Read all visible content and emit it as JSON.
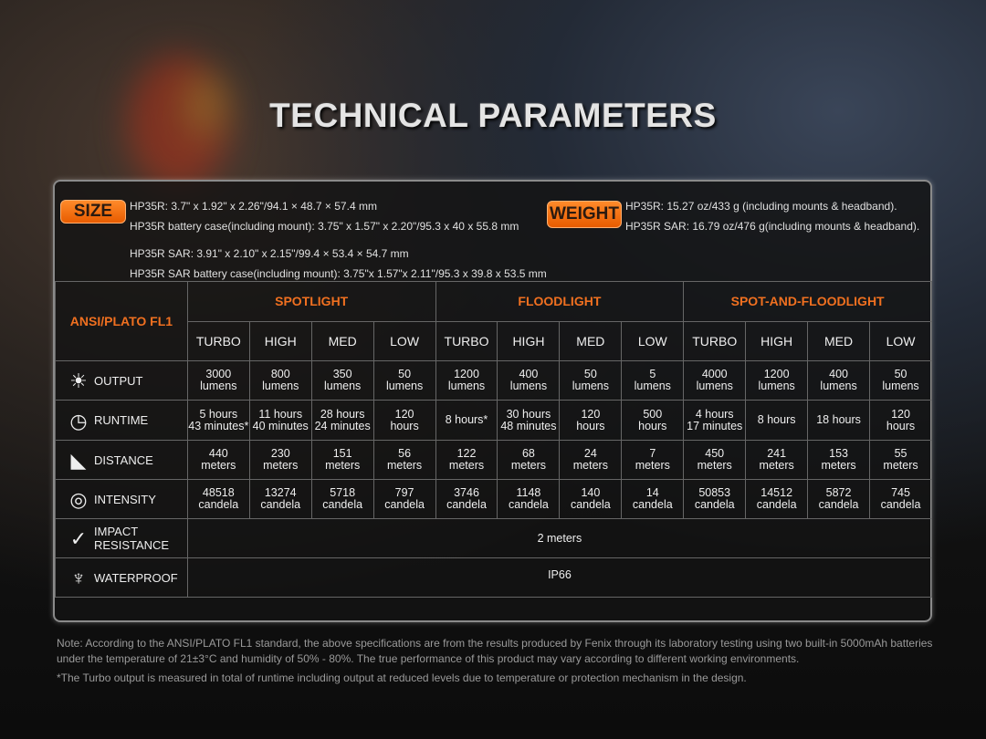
{
  "title": "TECHNICAL PARAMETERS",
  "size": {
    "label": "SIZE",
    "lines": [
      "HP35R: 3.7\" x 1.92\" x 2.26\"/94.1 × 48.7 × 57.4 mm",
      "HP35R battery case(including mount): 3.75\" x 1.57\" x 2.20\"/95.3 x 40 x 55.8 mm",
      "HP35R SAR: 3.91\" x 2.10\" x 2.15\"/99.4 × 53.4 × 54.7 mm",
      "HP35R SAR battery case(including mount): 3.75\"x 1.57\"x 2.11\"/95.3 x 39.8 x 53.5 mm"
    ]
  },
  "weight": {
    "label": "WEIGHT",
    "lines": [
      "HP35R: 15.27 oz/433 g (including mounts & headband).",
      "HP35R SAR: 16.79 oz/476 g(including mounts & headband)."
    ]
  },
  "table": {
    "corner": "ANSI/PLATO FL1",
    "groups": [
      "SPOTLIGHT",
      "FLOODLIGHT",
      "SPOT-AND-FLOODLIGHT"
    ],
    "modes": [
      "TURBO",
      "HIGH",
      "MED",
      "LOW",
      "TURBO",
      "HIGH",
      "MED",
      "LOW",
      "TURBO",
      "HIGH",
      "MED",
      "LOW"
    ],
    "rows": [
      {
        "label": "OUTPUT",
        "icon": "light-burst-icon",
        "cells": [
          [
            "3000",
            "lumens"
          ],
          [
            "800",
            "lumens"
          ],
          [
            "350",
            "lumens"
          ],
          [
            "50",
            "lumens"
          ],
          [
            "1200",
            "lumens"
          ],
          [
            "400",
            "lumens"
          ],
          [
            "50",
            "lumens"
          ],
          [
            "5",
            "lumens"
          ],
          [
            "4000",
            "lumens"
          ],
          [
            "1200",
            "lumens"
          ],
          [
            "400",
            "lumens"
          ],
          [
            "50",
            "lumens"
          ]
        ]
      },
      {
        "label": "RUNTIME",
        "icon": "clock-icon",
        "cells": [
          [
            "5 hours",
            "43 minutes*"
          ],
          [
            "11 hours",
            "40 minutes"
          ],
          [
            "28 hours",
            "24 minutes"
          ],
          [
            "120",
            "hours"
          ],
          [
            "8 hours*",
            ""
          ],
          [
            "30 hours",
            "48 minutes"
          ],
          [
            "120",
            "hours"
          ],
          [
            "500",
            "hours"
          ],
          [
            "4 hours",
            "17 minutes"
          ],
          [
            "8 hours",
            ""
          ],
          [
            "18 hours",
            ""
          ],
          [
            "120",
            "hours"
          ]
        ]
      },
      {
        "label": "DISTANCE",
        "icon": "beam-distance-icon",
        "cells": [
          [
            "440",
            "meters"
          ],
          [
            "230",
            "meters"
          ],
          [
            "151",
            "meters"
          ],
          [
            "56",
            "meters"
          ],
          [
            "122",
            "meters"
          ],
          [
            "68",
            "meters"
          ],
          [
            "24",
            "meters"
          ],
          [
            "7",
            "meters"
          ],
          [
            "450",
            "meters"
          ],
          [
            "241",
            "meters"
          ],
          [
            "153",
            "meters"
          ],
          [
            "55",
            "meters"
          ]
        ]
      },
      {
        "label": "INTENSITY",
        "icon": "target-icon",
        "cells": [
          [
            "48518",
            "candela"
          ],
          [
            "13274",
            "candela"
          ],
          [
            "5718",
            "candela"
          ],
          [
            "797",
            "candela"
          ],
          [
            "3746",
            "candela"
          ],
          [
            "1148",
            "candela"
          ],
          [
            "140",
            "candela"
          ],
          [
            "14",
            "candela"
          ],
          [
            "50853",
            "candela"
          ],
          [
            "14512",
            "candela"
          ],
          [
            "5872",
            "candela"
          ],
          [
            "745",
            "candela"
          ]
        ]
      }
    ],
    "impact": {
      "label1": "IMPACT",
      "label2": "RESISTANCE",
      "value": "2 meters"
    },
    "waterproof": {
      "label": "WATERPROOF",
      "value": "IP66"
    }
  },
  "notes": [
    "Note: According to the ANSI/PLATO FL1 standard, the above specifications are from the results produced by Fenix through its laboratory testing using two built-in 5000mAh batteries under the temperature of 21±3°C and humidity of 50% - 80%. The true performance of this product may vary according to different working environments.",
    "*The Turbo output is measured in total of runtime including output at reduced levels due to temperature or protection mechanism in the design."
  ],
  "colors": {
    "accent": "#f07020",
    "badge": "#f07010"
  }
}
